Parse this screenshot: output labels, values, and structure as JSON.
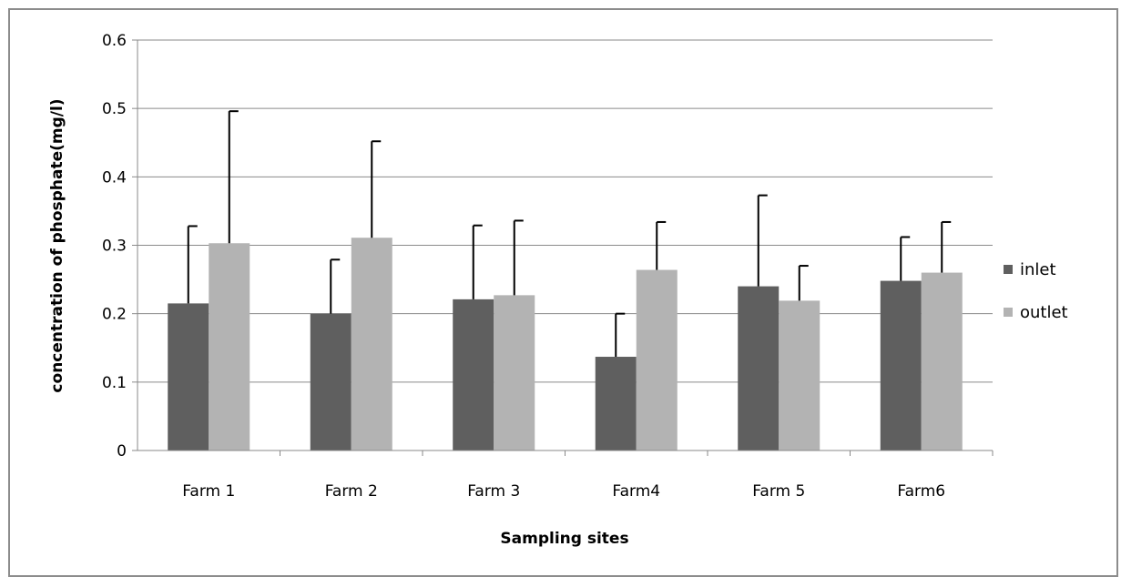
{
  "chart_data": {
    "type": "bar",
    "title": "",
    "xlabel": "Sampling sites",
    "ylabel": "concentration of phosphate(mg/l)",
    "categories": [
      "Farm 1",
      "Farm 2",
      "Farm 3",
      "Farm4",
      "Farm 5",
      "Farm6"
    ],
    "series": [
      {
        "name": "inlet",
        "color": "#5f5f5f",
        "values": [
          0.215,
          0.2,
          0.221,
          0.137,
          0.24,
          0.248
        ],
        "error_plus": [
          0.113,
          0.079,
          0.108,
          0.063,
          0.133,
          0.064
        ]
      },
      {
        "name": "outlet",
        "color": "#b3b3b3",
        "values": [
          0.303,
          0.311,
          0.227,
          0.264,
          0.219,
          0.26
        ],
        "error_plus": [
          0.193,
          0.141,
          0.109,
          0.07,
          0.051,
          0.074
        ]
      }
    ],
    "ylim": [
      0,
      0.6
    ],
    "yticks": [
      "0",
      "0.1",
      "0.2",
      "0.3",
      "0.4",
      "0.5",
      "0.6"
    ],
    "grid": true,
    "legend_position": "right"
  }
}
